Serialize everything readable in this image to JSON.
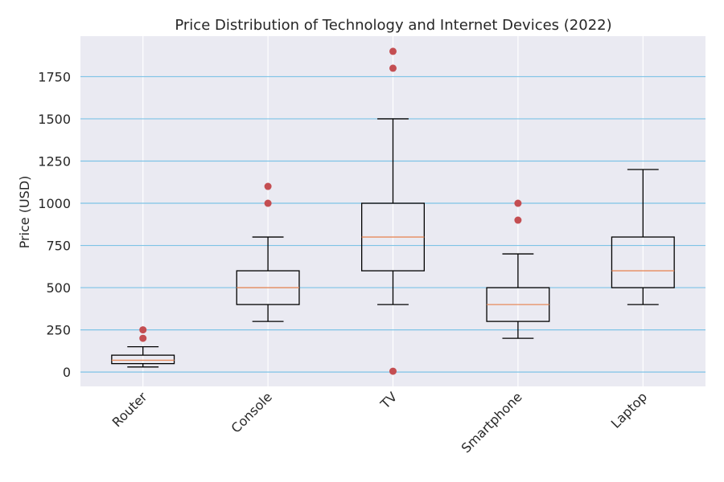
{
  "chart_data": {
    "type": "box",
    "title": "Price Distribution of Technology and Internet Devices (2022)",
    "xlabel": "",
    "ylabel": "Price (USD)",
    "ylim": [
      -85,
      1990
    ],
    "yticks": [
      0,
      250,
      500,
      750,
      1000,
      1250,
      1500,
      1750
    ],
    "categories": [
      "Router",
      "Console",
      "TV",
      "Smartphone",
      "Laptop"
    ],
    "boxes": [
      {
        "whisker_low": 30,
        "q1": 50,
        "median": 70,
        "q3": 100,
        "whisker_high": 150,
        "outliers": [
          200,
          250
        ]
      },
      {
        "whisker_low": 300,
        "q1": 400,
        "median": 500,
        "q3": 600,
        "whisker_high": 800,
        "outliers": [
          1000,
          1100
        ]
      },
      {
        "whisker_low": 400,
        "q1": 600,
        "median": 800,
        "q3": 1000,
        "whisker_high": 1500,
        "outliers": [
          1800,
          1900,
          5
        ]
      },
      {
        "whisker_low": 200,
        "q1": 300,
        "median": 400,
        "q3": 500,
        "whisker_high": 700,
        "outliers": [
          900,
          1000
        ]
      },
      {
        "whisker_low": 400,
        "q1": 500,
        "median": 600,
        "q3": 800,
        "whisker_high": 1200,
        "outliers": []
      }
    ],
    "grid": {
      "x": true,
      "y": true
    },
    "colors": {
      "background": "#eaeaf2",
      "y_grid": "#7ec3e6",
      "x_grid": "#ffffff",
      "box": "#000000",
      "median": "#e88a5b",
      "outlier": "#c44e52"
    }
  }
}
